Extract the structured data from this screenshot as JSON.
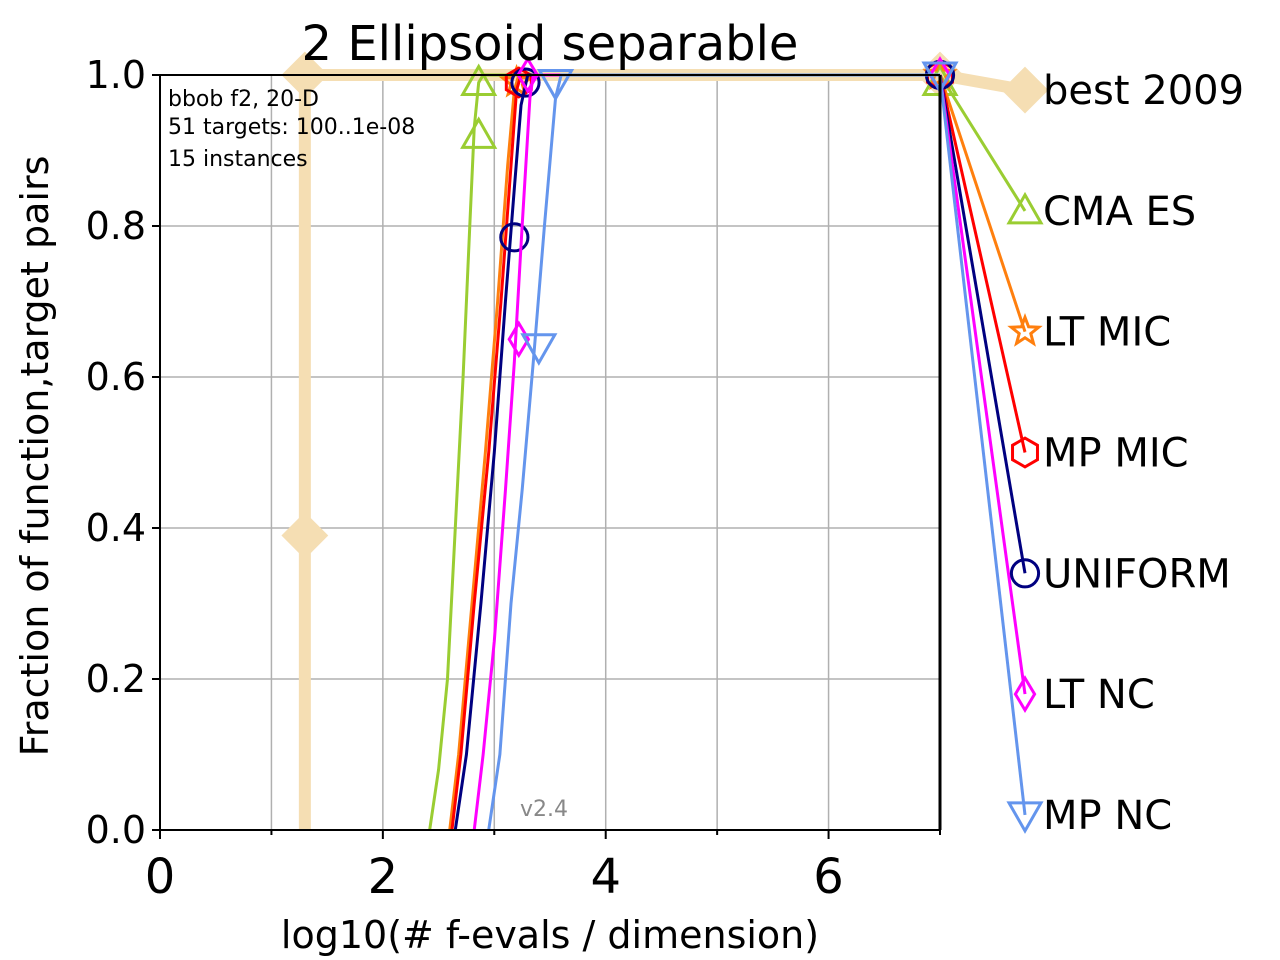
{
  "chart_data": {
    "type": "line",
    "title": "2 Ellipsoid separable",
    "xlabel": "log10(# f-evals / dimension)",
    "ylabel": "Fraction of function,target pairs",
    "xlim": [
      0,
      7
    ],
    "ylim": [
      0,
      1
    ],
    "x_ticks": [
      "0",
      "2",
      "4",
      "6"
    ],
    "y_ticks": [
      "0.0",
      "0.2",
      "0.4",
      "0.6",
      "0.8",
      "1.0"
    ],
    "grid": true,
    "info_lines": [
      "bbob f2, 20-D",
      "51 targets: 100..1e-08",
      "15 instances"
    ],
    "version": "v2.4",
    "series": [
      {
        "name": "best 2009",
        "color": "#f5deb3",
        "marker": "diamond",
        "points": [
          [
            1.3,
            0.0
          ],
          [
            1.3,
            0.39
          ],
          [
            1.3,
            1.0
          ],
          [
            7.0,
            1.0
          ]
        ],
        "markers": [
          [
            1.3,
            0.39
          ],
          [
            1.3,
            1.0
          ],
          [
            7.0,
            1.0
          ]
        ],
        "legend_y": 0.98
      },
      {
        "name": "CMA ES",
        "color": "#9acd32",
        "marker": "triangle",
        "points": [
          [
            2.42,
            0.0
          ],
          [
            2.5,
            0.08
          ],
          [
            2.58,
            0.2
          ],
          [
            2.65,
            0.4
          ],
          [
            2.72,
            0.6
          ],
          [
            2.78,
            0.8
          ],
          [
            2.82,
            0.93
          ],
          [
            2.86,
            0.99
          ],
          [
            2.9,
            1.0
          ],
          [
            7.0,
            1.0
          ]
        ],
        "markers": [
          [
            2.86,
            0.92
          ],
          [
            2.86,
            0.99
          ],
          [
            7.0,
            0.99
          ]
        ],
        "legend_y": 0.82
      },
      {
        "name": "LT MIC",
        "color": "#ff7f0e",
        "marker": "star",
        "points": [
          [
            2.6,
            0.0
          ],
          [
            2.68,
            0.1
          ],
          [
            2.8,
            0.3
          ],
          [
            2.92,
            0.5
          ],
          [
            3.03,
            0.7
          ],
          [
            3.12,
            0.88
          ],
          [
            3.18,
            0.98
          ],
          [
            3.22,
            1.0
          ],
          [
            7.0,
            1.0
          ]
        ],
        "markers": [
          [
            3.2,
            0.99
          ],
          [
            7.0,
            1.0
          ]
        ],
        "legend_y": 0.66
      },
      {
        "name": "MP MIC",
        "color": "#ff0000",
        "marker": "hexagon",
        "points": [
          [
            2.62,
            0.0
          ],
          [
            2.7,
            0.1
          ],
          [
            2.82,
            0.3
          ],
          [
            2.95,
            0.5
          ],
          [
            3.06,
            0.7
          ],
          [
            3.15,
            0.88
          ],
          [
            3.2,
            0.98
          ],
          [
            3.24,
            1.0
          ],
          [
            7.0,
            1.0
          ]
        ],
        "markers": [
          [
            3.22,
            0.99
          ],
          [
            7.0,
            1.0
          ]
        ],
        "legend_y": 0.5
      },
      {
        "name": "UNIFORM",
        "color": "#000080",
        "marker": "circle",
        "points": [
          [
            2.65,
            0.0
          ],
          [
            2.75,
            0.1
          ],
          [
            2.88,
            0.3
          ],
          [
            3.0,
            0.5
          ],
          [
            3.1,
            0.7
          ],
          [
            3.18,
            0.85
          ],
          [
            3.24,
            0.96
          ],
          [
            3.3,
            1.0
          ],
          [
            7.0,
            1.0
          ]
        ],
        "markers": [
          [
            3.18,
            0.785
          ],
          [
            3.28,
            0.99
          ],
          [
            7.0,
            1.0
          ]
        ],
        "legend_y": 0.34
      },
      {
        "name": "LT NC",
        "color": "#ff00ff",
        "marker": "diamond-thin",
        "points": [
          [
            2.82,
            0.0
          ],
          [
            2.9,
            0.1
          ],
          [
            3.0,
            0.25
          ],
          [
            3.1,
            0.45
          ],
          [
            3.18,
            0.62
          ],
          [
            3.25,
            0.8
          ],
          [
            3.32,
            0.97
          ],
          [
            3.35,
            1.0
          ],
          [
            7.0,
            1.0
          ]
        ],
        "markers": [
          [
            3.22,
            0.65
          ],
          [
            3.3,
            1.0
          ],
          [
            7.0,
            1.0
          ]
        ],
        "legend_y": 0.18
      },
      {
        "name": "MP NC",
        "color": "#6495ed",
        "marker": "triangle-down",
        "points": [
          [
            2.95,
            0.0
          ],
          [
            3.05,
            0.1
          ],
          [
            3.15,
            0.3
          ],
          [
            3.25,
            0.45
          ],
          [
            3.35,
            0.62
          ],
          [
            3.45,
            0.8
          ],
          [
            3.55,
            0.97
          ],
          [
            3.6,
            1.0
          ],
          [
            7.0,
            1.0
          ]
        ],
        "markers": [
          [
            3.4,
            0.64
          ],
          [
            3.55,
            0.99
          ],
          [
            7.0,
            1.0
          ]
        ],
        "legend_y": 0.02
      }
    ]
  }
}
